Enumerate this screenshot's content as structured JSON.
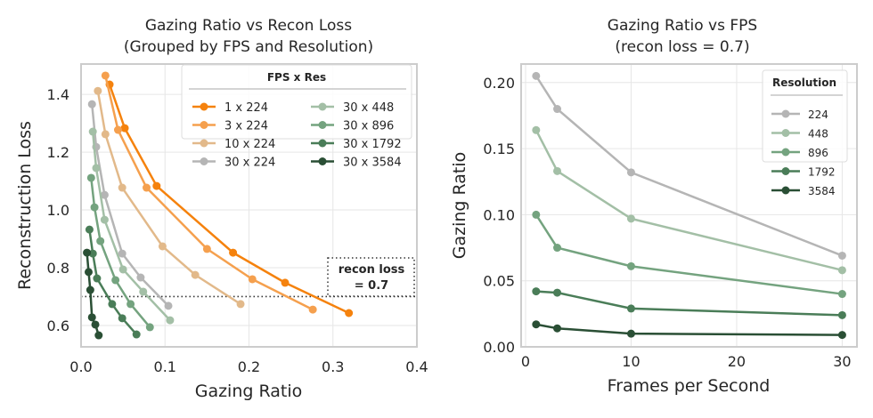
{
  "chart_data": [
    {
      "type": "line",
      "title": "Gazing Ratio vs Recon Loss\n(Grouped by FPS and Resolution)",
      "title_lines": [
        "Gazing Ratio vs Recon Loss",
        "(Grouped by FPS and Resolution)"
      ],
      "xlabel": "Gazing Ratio",
      "ylabel": "Reconstruction Loss",
      "xlim": [
        0.0,
        0.4
      ],
      "ylim": [
        0.526,
        1.505
      ],
      "xticks": [
        0.0,
        0.1,
        0.2,
        0.3,
        0.4
      ],
      "xtick_labels": [
        "0.0",
        "0.1",
        "0.2",
        "0.3",
        "0.4"
      ],
      "yticks": [
        0.6,
        0.8,
        1.0,
        1.2,
        1.4
      ],
      "ytick_labels": [
        "0.6",
        "0.8",
        "1.0",
        "1.2",
        "1.4"
      ],
      "grid": true,
      "legend": {
        "title": "FPS x Res",
        "placement": "top-right",
        "columns": 2
      },
      "reference_line": {
        "y": 0.7,
        "style": "dotted",
        "color": "#333333"
      },
      "annotation": {
        "lines": [
          "recon loss",
          "= 0.7"
        ],
        "placement": "right, above reference line"
      },
      "series": [
        {
          "name": "1 x 224",
          "color": "#F5820D",
          "x": [
            0.034,
            0.052,
            0.09,
            0.181,
            0.243,
            0.319
          ],
          "y": [
            1.434,
            1.283,
            1.083,
            0.852,
            0.748,
            0.643
          ]
        },
        {
          "name": "3 x 224",
          "color": "#F5A04E",
          "x": [
            0.029,
            0.044,
            0.078,
            0.15,
            0.204,
            0.276
          ],
          "y": [
            1.465,
            1.277,
            1.077,
            0.865,
            0.76,
            0.655
          ]
        },
        {
          "name": "10 x 224",
          "color": "#E2B98A",
          "x": [
            0.02,
            0.029,
            0.049,
            0.097,
            0.136,
            0.19
          ],
          "y": [
            1.412,
            1.262,
            1.077,
            0.874,
            0.775,
            0.674
          ]
        },
        {
          "name": "30 x 224",
          "color": "#B5B5B5",
          "x": [
            0.013,
            0.018,
            0.028,
            0.049,
            0.071,
            0.104
          ],
          "y": [
            1.366,
            1.218,
            1.052,
            0.849,
            0.766,
            0.668
          ]
        },
        {
          "name": "30 x 448",
          "color": "#A3BFA6",
          "x": [
            0.014,
            0.018,
            0.028,
            0.05,
            0.074,
            0.106
          ],
          "y": [
            1.271,
            1.145,
            0.966,
            0.794,
            0.717,
            0.618
          ]
        },
        {
          "name": "30 x 896",
          "color": "#74A37F",
          "x": [
            0.012,
            0.016,
            0.023,
            0.041,
            0.059,
            0.082
          ],
          "y": [
            1.111,
            1.009,
            0.892,
            0.757,
            0.674,
            0.594
          ]
        },
        {
          "name": "30 x 1792",
          "color": "#4A7D58",
          "x": [
            0.01,
            0.014,
            0.019,
            0.037,
            0.049,
            0.066
          ],
          "y": [
            0.932,
            0.849,
            0.763,
            0.674,
            0.625,
            0.569
          ]
        },
        {
          "name": "30 x 3584",
          "color": "#2A4F35",
          "x": [
            0.007,
            0.009,
            0.011,
            0.013,
            0.017,
            0.021
          ],
          "y": [
            0.852,
            0.785,
            0.723,
            0.628,
            0.603,
            0.566
          ]
        }
      ]
    },
    {
      "type": "line",
      "title": "Gazing Ratio vs FPS\n(recon loss = 0.7)",
      "title_lines": [
        "Gazing Ratio vs FPS",
        "(recon loss = 0.7)"
      ],
      "xlabel": "Frames per Second",
      "ylabel": "Gazing Ratio",
      "xlim": [
        -0.42,
        31.4
      ],
      "ylim": [
        0.0,
        0.214
      ],
      "xticks": [
        0,
        10,
        20,
        30
      ],
      "xtick_labels": [
        "0",
        "10",
        "20",
        "30"
      ],
      "yticks": [
        0.0,
        0.05,
        0.1,
        0.15,
        0.2
      ],
      "ytick_labels": [
        "0.00",
        "0.05",
        "0.10",
        "0.15",
        "0.20"
      ],
      "grid": true,
      "legend": {
        "title": "Resolution",
        "placement": "top-right",
        "columns": 1
      },
      "x": [
        1,
        3,
        10,
        30
      ],
      "series": [
        {
          "name": "224",
          "color": "#B5B5B5",
          "values": [
            0.205,
            0.18,
            0.132,
            0.069
          ]
        },
        {
          "name": "448",
          "color": "#A3BFA6",
          "values": [
            0.164,
            0.133,
            0.097,
            0.058
          ]
        },
        {
          "name": "896",
          "color": "#74A37F",
          "values": [
            0.1,
            0.075,
            0.061,
            0.04
          ]
        },
        {
          "name": "1792",
          "color": "#4A7D58",
          "values": [
            0.042,
            0.041,
            0.029,
            0.024
          ]
        },
        {
          "name": "3584",
          "color": "#2A4F35",
          "values": [
            0.017,
            0.014,
            0.01,
            0.009
          ]
        }
      ]
    }
  ]
}
